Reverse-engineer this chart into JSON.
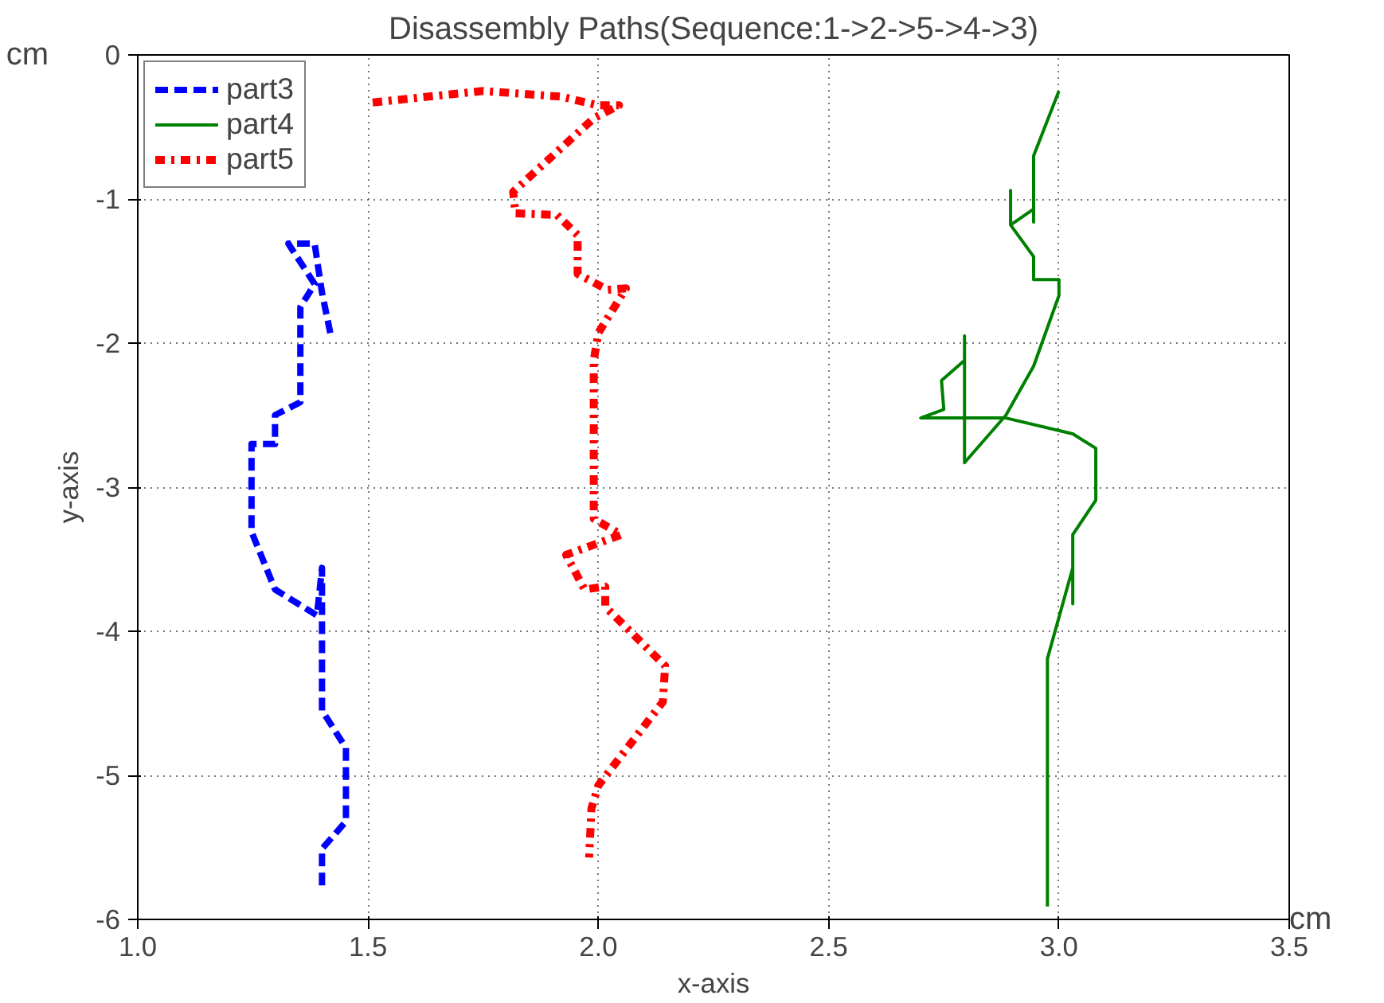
{
  "chart_data": {
    "type": "line",
    "title": "Disassembly Paths(Sequence:1->2->5->4->3)",
    "xlabel": "x-axis",
    "ylabel": "y-axis",
    "annotations": [
      "cm",
      "cm"
    ],
    "xlim": [
      1.0,
      3.5
    ],
    "ylim": [
      -6,
      0
    ],
    "xticks": [
      {
        "value": 1.0,
        "label": "1.0"
      },
      {
        "value": 1.5,
        "label": "1.5"
      },
      {
        "value": 2.0,
        "label": "2.0"
      },
      {
        "value": 2.5,
        "label": "2.5"
      },
      {
        "value": 3.0,
        "label": "3.0"
      },
      {
        "value": 3.5,
        "label": "3.5"
      }
    ],
    "yticks": [
      0,
      -1,
      -2,
      -3,
      -4,
      -5,
      -6
    ],
    "grid": true,
    "legend": "top left",
    "series": [
      {
        "name": "part3",
        "color": "#0000ff",
        "line_style": "dashed",
        "x": [
          1.418,
          1.4,
          1.384,
          1.327,
          1.384,
          1.353,
          1.353,
          1.298,
          1.298,
          1.247,
          1.247,
          1.298,
          1.389,
          1.4,
          1.4,
          1.452,
          1.452,
          1.4,
          1.4
        ],
        "values": [
          -1.93,
          -1.65,
          -1.31,
          -1.31,
          -1.59,
          -1.75,
          -2.41,
          -2.5,
          -2.7,
          -2.7,
          -3.31,
          -3.71,
          -3.89,
          -3.56,
          -4.55,
          -4.81,
          -5.32,
          -5.51,
          -5.8
        ]
      },
      {
        "name": "part4",
        "color": "#008000",
        "line_style": "solid",
        "x": [
          3.0,
          2.945,
          2.945,
          2.945,
          2.895,
          2.895,
          2.895,
          2.945,
          2.945,
          3.0,
          3.0,
          2.945,
          2.885,
          2.795,
          2.795,
          2.795,
          2.745,
          2.75,
          2.7,
          2.885,
          3.03,
          3.08,
          3.08,
          3.03,
          3.03,
          3.03,
          2.975,
          2.975
        ],
        "values": [
          -0.25,
          -0.7,
          -1.16,
          -1.07,
          -1.18,
          -0.94,
          -1.18,
          -1.4,
          -1.56,
          -1.56,
          -1.67,
          -2.16,
          -2.5,
          -2.83,
          -1.95,
          -2.12,
          -2.26,
          -2.46,
          -2.52,
          -2.52,
          -2.63,
          -2.73,
          -3.09,
          -3.33,
          -3.81,
          -3.56,
          -4.19,
          -5.91
        ]
      },
      {
        "name": "part5",
        "color": "#ff0000",
        "line_style": "dashdot",
        "x": [
          1.51,
          1.75,
          1.92,
          2.0,
          2.045,
          1.99,
          1.815,
          1.82,
          1.91,
          1.955,
          1.955,
          2.02,
          2.06,
          2.0,
          1.99,
          1.99,
          2.05,
          1.93,
          1.97,
          2.015,
          2.015,
          2.145,
          2.14,
          2.0,
          1.985,
          1.98
        ],
        "values": [
          -0.33,
          -0.25,
          -0.29,
          -0.35,
          -0.35,
          -0.44,
          -0.95,
          -1.1,
          -1.11,
          -1.25,
          -1.52,
          -1.63,
          -1.62,
          -1.93,
          -2.12,
          -3.22,
          -3.33,
          -3.47,
          -3.71,
          -3.69,
          -3.83,
          -4.24,
          -4.49,
          -5.07,
          -5.23,
          -5.57
        ]
      }
    ]
  }
}
